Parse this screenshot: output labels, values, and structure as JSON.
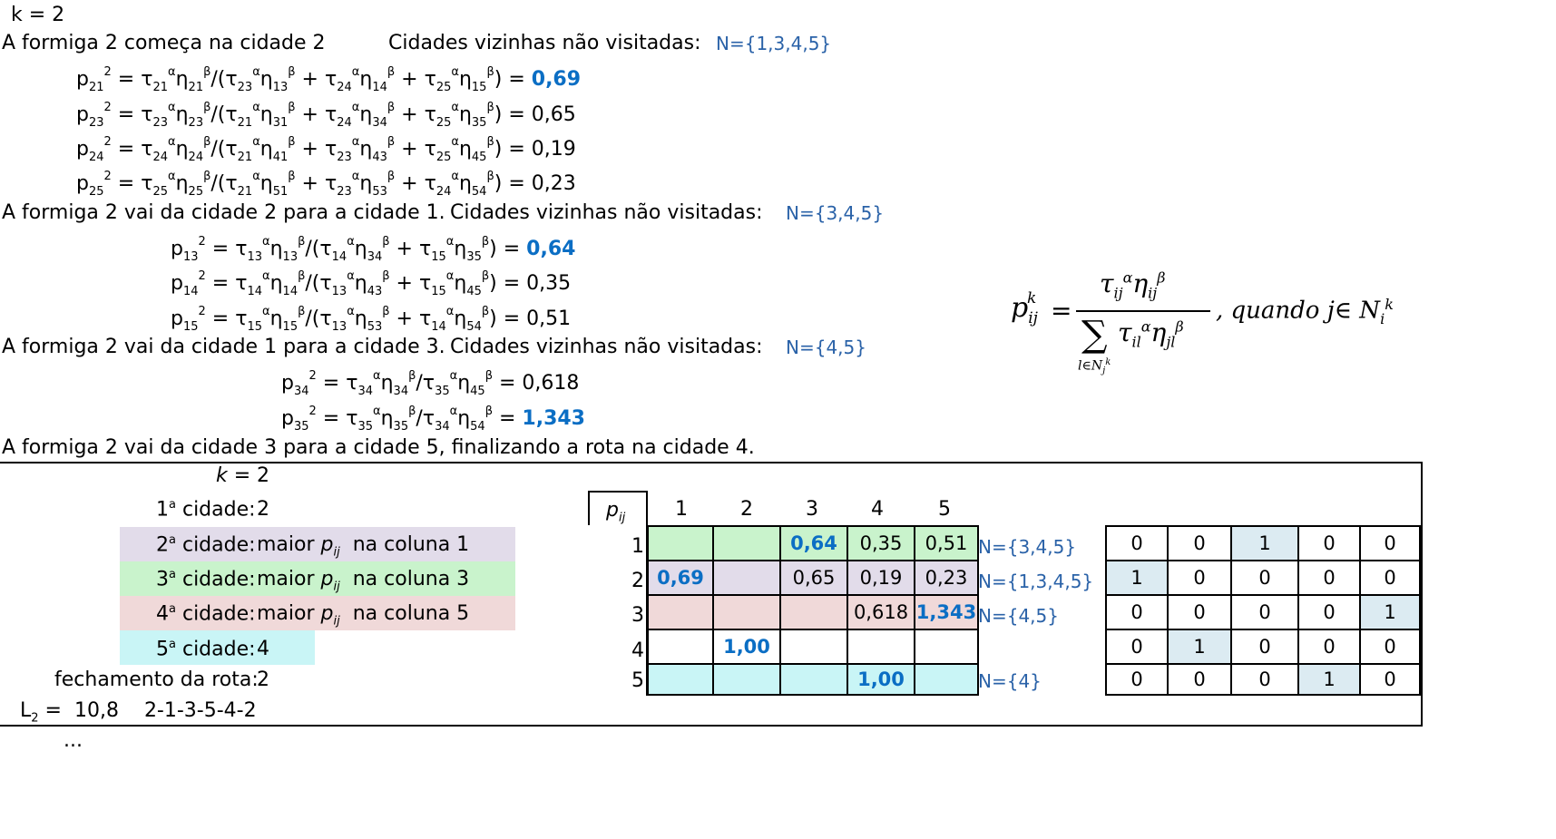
{
  "header": {
    "k_line": "k = 2"
  },
  "step1": {
    "intro": "A formiga 2 começa na cidade 2",
    "neighbors_label": "Cidades vizinhas não visitadas:",
    "neighbors_set": "N={1,3,4,5}",
    "formulas": [
      {
        "lhs": "p21",
        "rhs": "τ21 η21 /(τ23 η13 + τ24 η14 + τ25 η15 )",
        "value": "0,69",
        "highlight": true
      },
      {
        "lhs": "p23",
        "rhs": "τ23 η23 /(τ21 η31 + τ24 η34 + τ25 η35 )",
        "value": "0,65",
        "highlight": false
      },
      {
        "lhs": "p24",
        "rhs": "τ24 η24 /(τ21 η41 + τ23 η43 + τ25 η45 )",
        "value": "0,19",
        "highlight": false
      },
      {
        "lhs": "p25",
        "rhs": "τ25 η25 /(τ21 η51 + τ23 η53 + τ24 η54 )",
        "value": "0,23",
        "highlight": false
      }
    ]
  },
  "step2": {
    "intro": "A formiga 2 vai da cidade 2 para a cidade 1.",
    "neighbors_label": "Cidades vizinhas não visitadas:",
    "neighbors_set": "N={3,4,5}",
    "values": [
      "0,64",
      "0,35",
      "0,51"
    ]
  },
  "step3": {
    "intro": "A formiga 2 vai da cidade 1 para a cidade 3.",
    "neighbors_label": "Cidades vizinhas não visitadas:",
    "neighbors_set": "N={4,5}",
    "values": [
      "0,618",
      "1,343"
    ]
  },
  "step4": {
    "intro": "A formiga 2 vai da cidade 3 para a cidade 5, finalizando a rota na cidade 4."
  },
  "equals": "=",
  "summary": {
    "k_label": "k =",
    "k_value": "2",
    "first_label": "cidade:",
    "first_value": "2",
    "second_label": "cidade:",
    "second_value": "maior p ij  na coluna 1",
    "third_label": "cidade:",
    "third_value": "maior p ij  na coluna  3",
    "fourth_label": "cidade:",
    "fourth_value": "maior p ij  na coluna 5",
    "fifth_label": "cidade:",
    "fifth_value": "4",
    "close_label": "fechamento da rota:",
    "close_value": "2",
    "L_label": "L2 =",
    "L_value": "10,8",
    "route": "2-1-3-5-4-2",
    "ellipsis": "...",
    "ordinals": [
      "1",
      "2",
      "3",
      "4",
      "5"
    ],
    "ordinal_sup": "a",
    "maior": "maior",
    "p": "p",
    "ij": "ij",
    "na_coluna": [
      "na coluna 1",
      "na coluna  3",
      "na coluna 5"
    ]
  },
  "ptable": {
    "corner": "p",
    "corner_sub": "ij",
    "cols": [
      "1",
      "2",
      "3",
      "4",
      "5"
    ],
    "rows": [
      "1",
      "2",
      "3",
      "4",
      "5"
    ],
    "cells": [
      [
        "",
        "",
        "0,64",
        "0,35",
        "0,51"
      ],
      [
        "0,69",
        "",
        "0,65",
        "0,19",
        "0,23"
      ],
      [
        "",
        "",
        "",
        "0,618",
        "1,343"
      ],
      [
        "",
        "1,00",
        "",
        "",
        ""
      ],
      [
        "",
        "",
        "",
        "1,00",
        ""
      ]
    ],
    "row_sets": [
      "N={3,4,5}",
      "N={1,3,4,5}",
      "N={4,5}",
      "",
      "N={4}"
    ]
  },
  "binmatrix": [
    [
      "0",
      "0",
      "1",
      "0",
      "0"
    ],
    [
      "1",
      "0",
      "0",
      "0",
      "0"
    ],
    [
      "0",
      "0",
      "0",
      "0",
      "1"
    ],
    [
      "0",
      "1",
      "0",
      "0",
      "0"
    ],
    [
      "0",
      "0",
      "0",
      "1",
      "0"
    ]
  ],
  "colors": {
    "blue_text": "#2a62a8",
    "bold_blue": "#0b6ec4",
    "green": "#c9f3cc",
    "purple": "#e2dcea",
    "pink": "#f0d9d9",
    "cyan": "#c9f5f6",
    "lightblue": "#dcebf2"
  }
}
